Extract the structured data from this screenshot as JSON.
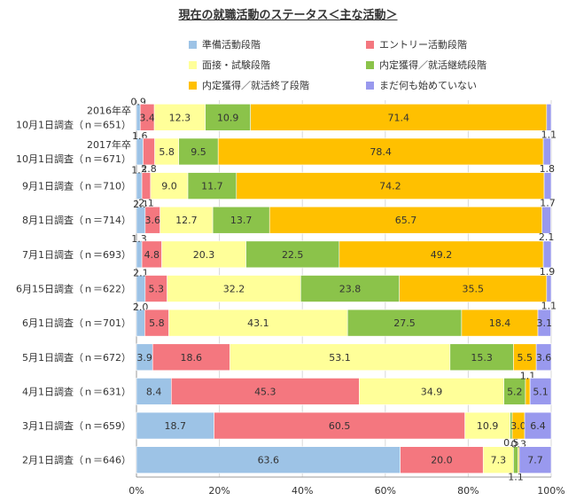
{
  "chart_data": {
    "type": "bar",
    "orientation": "horizontal-stacked",
    "title": "現在の就職活動のステータス＜主な活動＞",
    "categories": [
      [
        "2016年卒",
        "10月1日調査（ｎ＝651）"
      ],
      [
        "2017年卒",
        "10月1日調査（ｎ＝671）"
      ],
      [
        "9月1日調査（ｎ＝710）"
      ],
      [
        "8月1日調査（ｎ＝714）"
      ],
      [
        "7月1日調査（ｎ＝693）"
      ],
      [
        "6月15日調査（ｎ＝622）"
      ],
      [
        "6月1日調査（ｎ＝701）"
      ],
      [
        "5月1日調査（ｎ＝672）"
      ],
      [
        "4月1日調査（ｎ＝631）"
      ],
      [
        "3月1日調査（ｎ＝659）"
      ],
      [
        "2月1日調査（ｎ＝646）"
      ]
    ],
    "series": [
      {
        "name": "準備活動段階",
        "color": "#9dc3e6",
        "values": [
          0.9,
          1.6,
          1.3,
          2.1,
          1.3,
          2.1,
          2.0,
          3.9,
          8.4,
          18.7,
          63.6
        ]
      },
      {
        "name": "エントリー活動段階",
        "color": "#f4777f",
        "values": [
          3.4,
          2.8,
          2.1,
          3.6,
          4.8,
          5.3,
          5.8,
          18.6,
          45.3,
          60.5,
          20.0
        ]
      },
      {
        "name": "面接・試験段階",
        "color": "#ffff99",
        "values": [
          12.3,
          5.8,
          9.0,
          12.7,
          20.3,
          32.2,
          43.1,
          53.1,
          34.9,
          10.9,
          7.3
        ]
      },
      {
        "name": "内定獲得／就活継続段階",
        "color": "#8bc34a",
        "values": [
          10.9,
          9.5,
          11.7,
          13.7,
          22.5,
          23.8,
          27.5,
          15.3,
          5.2,
          0.5,
          1.1
        ]
      },
      {
        "name": "内定獲得／就活終了段階",
        "color": "#ffc000",
        "values": [
          71.4,
          78.4,
          74.2,
          65.7,
          49.2,
          35.5,
          18.4,
          5.5,
          1.1,
          3.0,
          0.3
        ]
      },
      {
        "name": "まだ何も始めていない",
        "color": "#9999ee",
        "values": [
          1.1,
          1.8,
          1.7,
          2.1,
          1.9,
          1.1,
          3.1,
          3.6,
          5.1,
          6.4,
          7.7
        ]
      }
    ],
    "xlim": [
      0,
      100
    ],
    "x_ticks": [
      "0%",
      "20%",
      "40%",
      "60%",
      "80%",
      "100%"
    ],
    "legend_position": "top"
  }
}
